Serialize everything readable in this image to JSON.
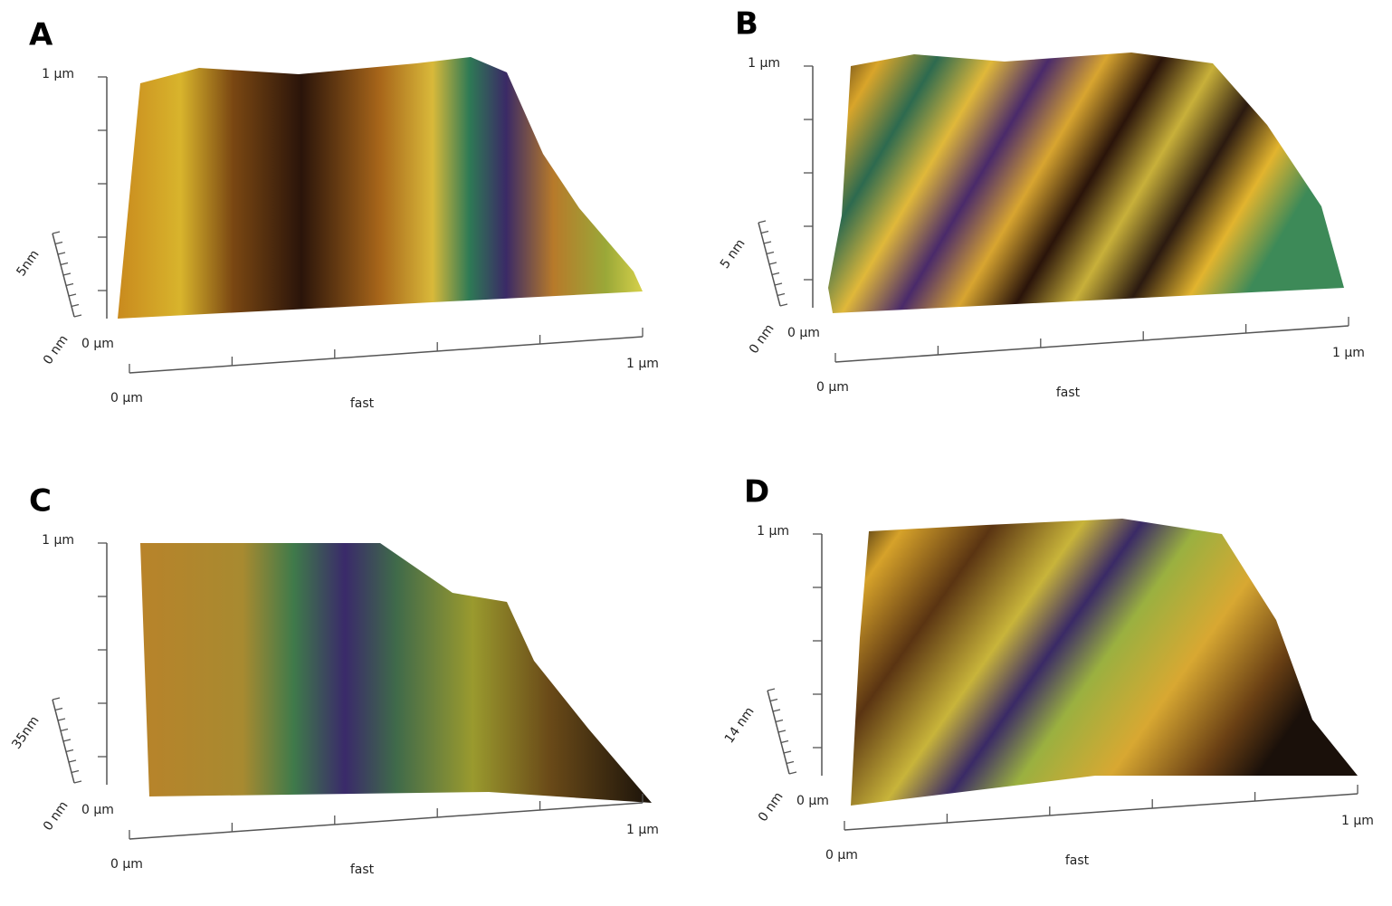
{
  "panels": [
    {
      "label": "A",
      "height_top": "1 µm",
      "z_top": "5nm",
      "z_bottom": "0 nm",
      "origin": "0 µm",
      "x_start": "0 µm",
      "x_end": "1 µm",
      "x_title": "fast"
    },
    {
      "label": "B",
      "height_top": "1 µm",
      "z_top": "5 nm",
      "z_bottom": "0 nm",
      "origin": "0 µm",
      "x_start": "0 µm",
      "x_end": "1 µm",
      "x_title": "fast"
    },
    {
      "label": "C",
      "height_top": "1 µm",
      "z_top": "35nm",
      "z_bottom": "0 nm",
      "origin": "0 µm",
      "x_start": "0 µm",
      "x_end": "1 µm",
      "x_title": "fast"
    },
    {
      "label": "D",
      "height_top": "1 µm",
      "z_top": "14 nm",
      "z_bottom": "0 nm",
      "origin": "0 µm",
      "x_start": "0 µm",
      "x_end": "1 µm",
      "x_title": "fast"
    }
  ]
}
